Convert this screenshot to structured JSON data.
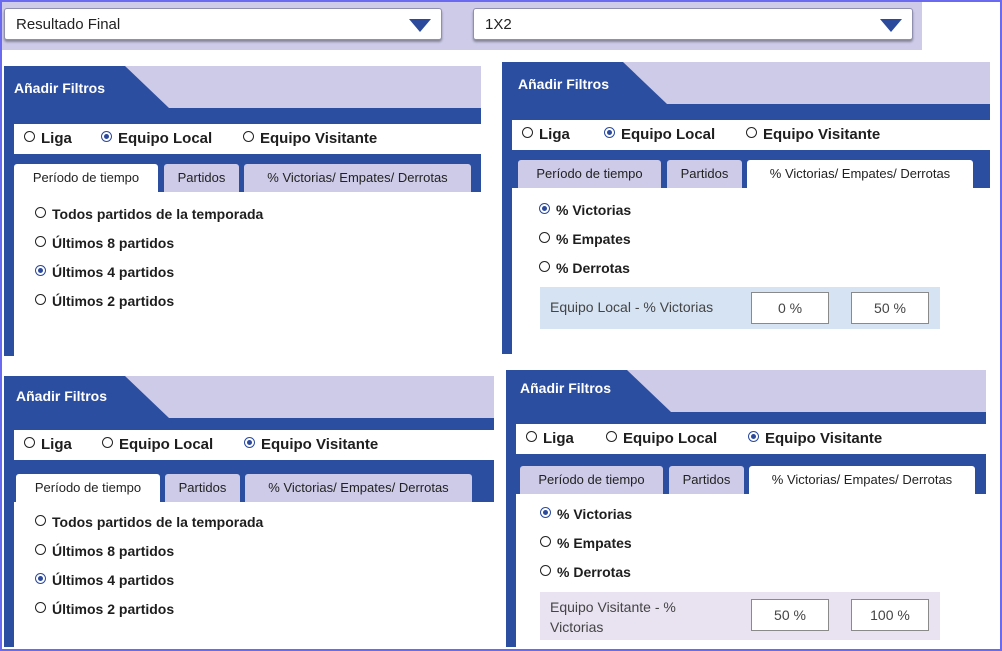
{
  "top": {
    "select1": "Resultado Final",
    "select2": "1X2"
  },
  "panels": [
    {
      "title": "Añadir Filtros",
      "filters": [
        "Liga",
        "Equipo Local",
        "Equipo Visitante"
      ],
      "tabs": [
        "Período de tiempo",
        "Partidos",
        "% Victorias/ Empates/ Derrotas"
      ],
      "items": [
        "Todos partidos de la temporada",
        "Últimos 8 partidos",
        "Últimos 4 partidos",
        "Últimos 2 partidos"
      ]
    },
    {
      "title": "Añadir Filtros",
      "filters": [
        "Liga",
        "Equipo Local",
        "Equipo Visitante"
      ],
      "tabs": [
        "Período de tiempo",
        "Partidos",
        "% Victorias/ Empates/ Derrotas"
      ],
      "items": [
        "% Victorias",
        "% Empates",
        "% Derrotas"
      ],
      "range": {
        "label": "Equipo Local - % Victorias",
        "min": "0 %",
        "max": "50 %",
        "bg": "#d6e3f3"
      }
    },
    {
      "title": "Añadir Filtros",
      "filters": [
        "Liga",
        "Equipo Local",
        "Equipo Visitante"
      ],
      "tabs": [
        "Período de tiempo",
        "Partidos",
        "% Victorias/ Empates/ Derrotas"
      ],
      "items": [
        "Todos partidos de la temporada",
        "Últimos 8 partidos",
        "Últimos 4 partidos",
        "Últimos 2 partidos"
      ]
    },
    {
      "title": "Añadir Filtros",
      "filters": [
        "Liga",
        "Equipo Local",
        "Equipo Visitante"
      ],
      "tabs": [
        "Período de tiempo",
        "Partidos",
        "% Victorias/ Empates/ Derrotas"
      ],
      "items": [
        "% Victorias",
        "% Empates",
        "% Derrotas"
      ],
      "range": {
        "label": "Equipo Visitante - % Victorias",
        "min": "50 %",
        "max": "100 %",
        "bg": "#e9e2f1"
      }
    }
  ],
  "colors": {
    "accent": "#2c4ea1",
    "header_band": "#cdcbe8"
  }
}
